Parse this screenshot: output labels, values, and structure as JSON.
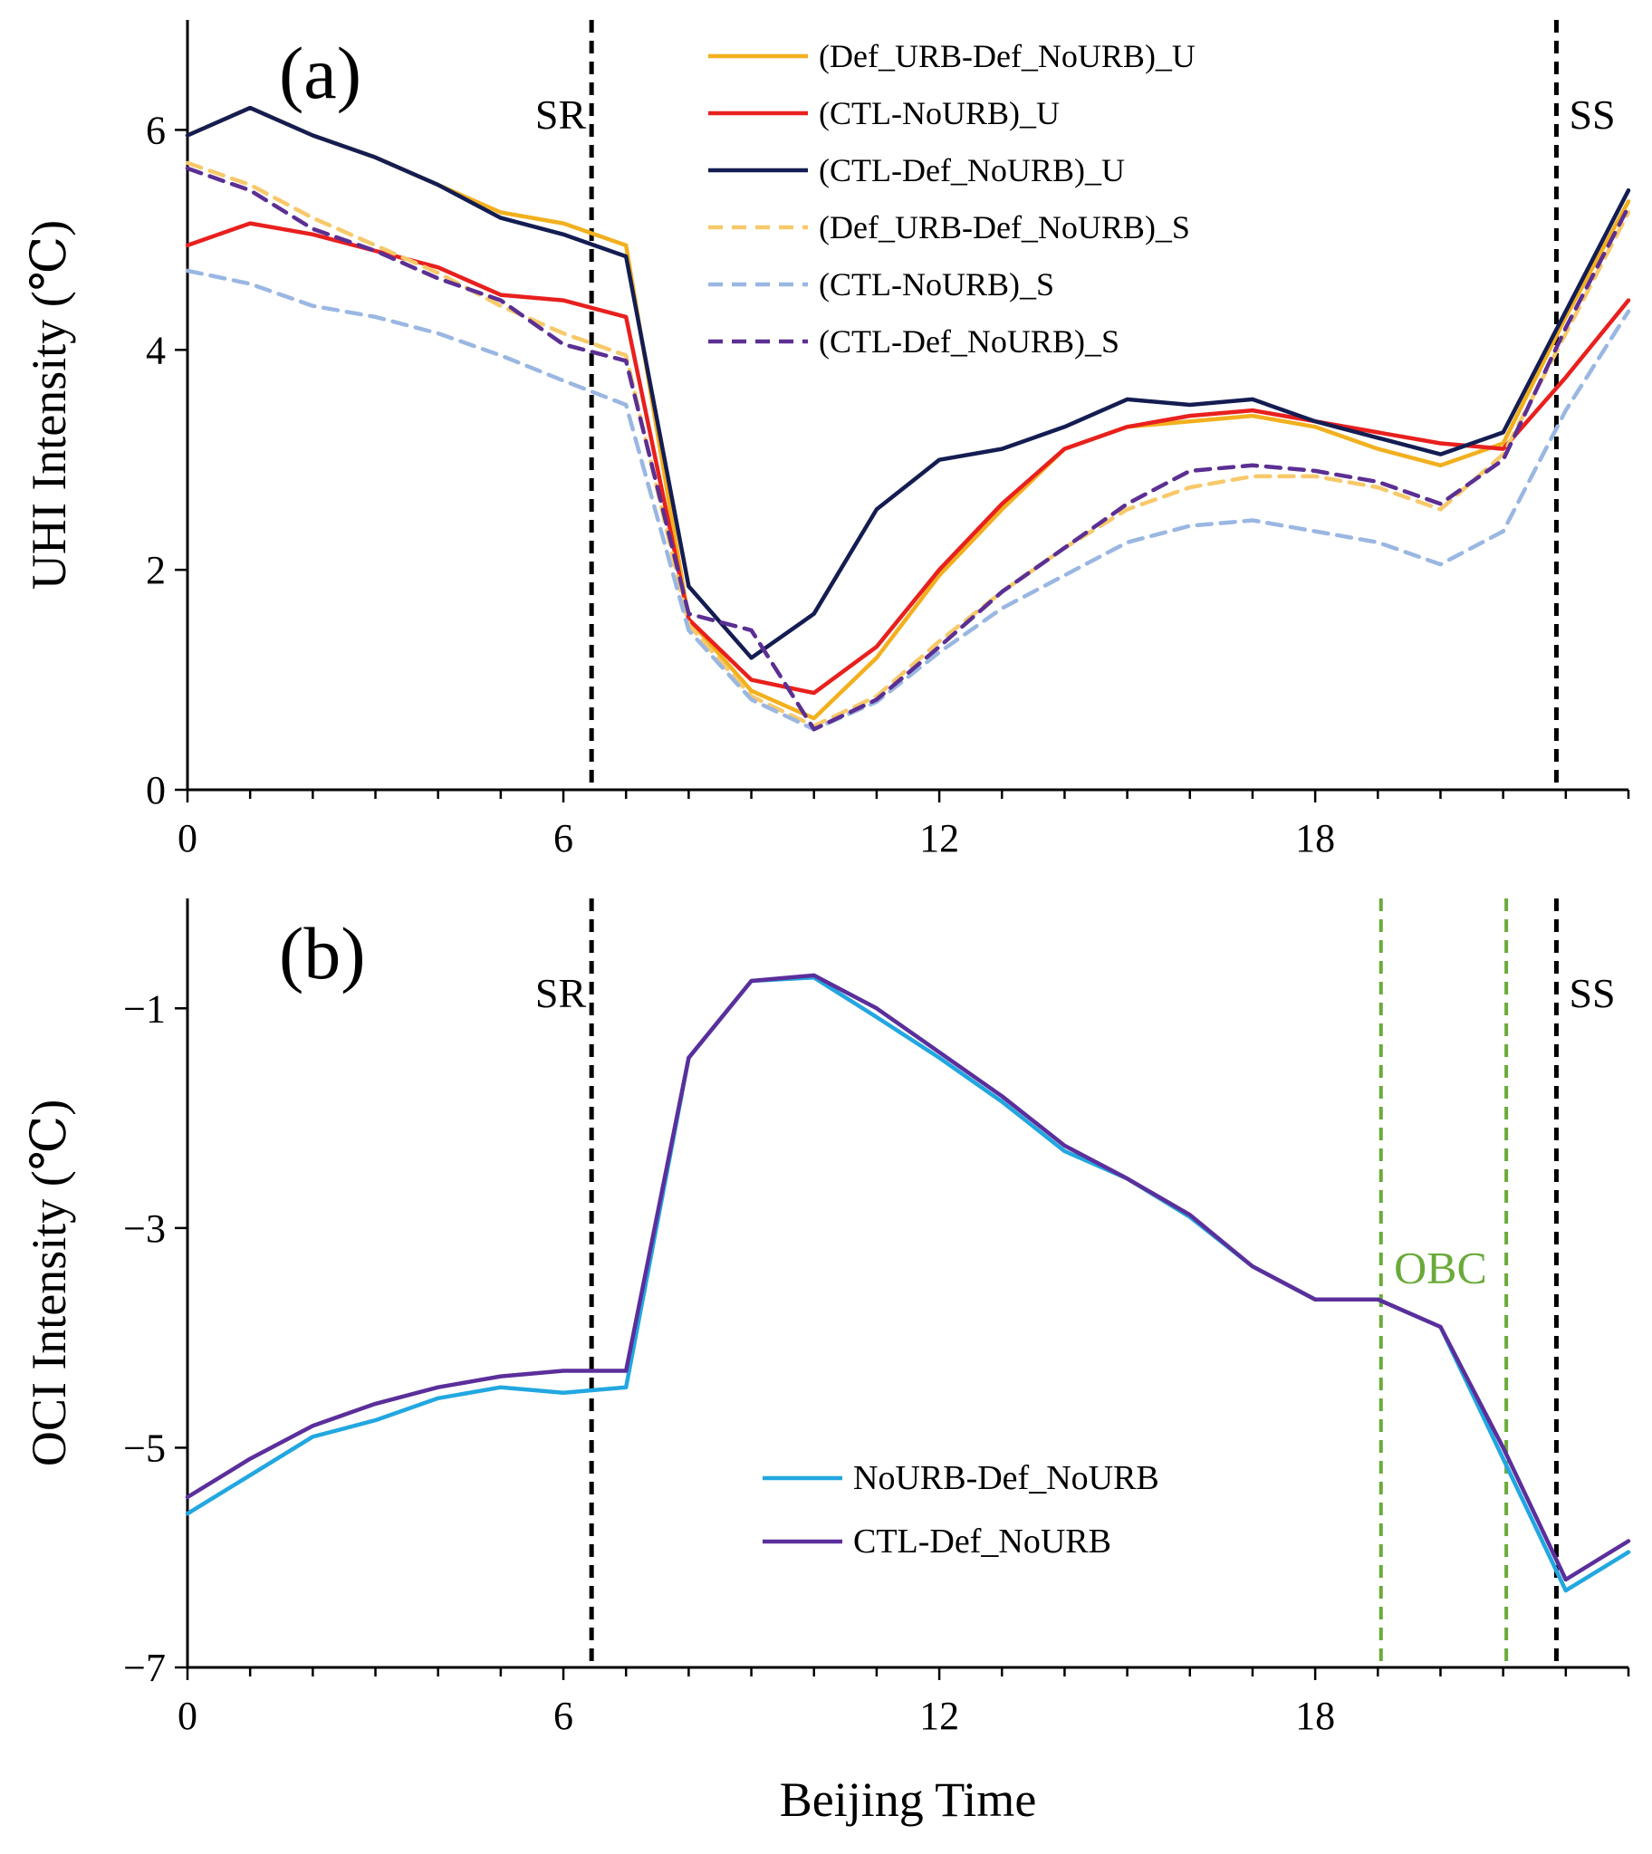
{
  "chart_data": [
    {
      "panel": "(a)",
      "type": "line",
      "ylabel": "UHI Intensity (℃)",
      "xlabel": "",
      "xlim": [
        0,
        23
      ],
      "ylim": [
        0,
        7
      ],
      "xticks": [
        0,
        6,
        12,
        18
      ],
      "yticks": [
        0,
        2,
        4,
        6
      ],
      "grid": false,
      "legend_position": "top-center",
      "markers": [
        {
          "label": "SR",
          "x": 6.45,
          "color": "#000000",
          "style": "dashed"
        },
        {
          "label": "SS",
          "x": 21.85,
          "color": "#000000",
          "style": "dashed"
        }
      ],
      "x": [
        0,
        1,
        2,
        3,
        4,
        5,
        6,
        7,
        8,
        9,
        10,
        11,
        12,
        13,
        14,
        15,
        16,
        17,
        18,
        19,
        20,
        21,
        22,
        23
      ],
      "series": [
        {
          "name": "(Def_URB-Def_NoURB)_U",
          "color": "#f2b01e",
          "dash": "solid",
          "values": [
            5.95,
            6.2,
            5.95,
            5.75,
            5.5,
            5.25,
            5.15,
            4.95,
            1.55,
            0.9,
            0.65,
            1.2,
            1.95,
            2.55,
            3.1,
            3.3,
            3.35,
            3.4,
            3.3,
            3.1,
            2.95,
            3.15,
            4.3,
            5.35
          ]
        },
        {
          "name": "(CTL-NoURB)_U",
          "color": "#e8201e",
          "dash": "solid",
          "values": [
            4.95,
            5.15,
            5.05,
            4.9,
            4.75,
            4.5,
            4.45,
            4.3,
            1.55,
            1.0,
            0.88,
            1.3,
            2.0,
            2.6,
            3.1,
            3.3,
            3.4,
            3.45,
            3.35,
            3.25,
            3.15,
            3.1,
            3.75,
            4.45
          ]
        },
        {
          "name": "(CTL-Def_NoURB)_U",
          "color": "#141d52",
          "dash": "solid",
          "values": [
            5.95,
            6.2,
            5.95,
            5.75,
            5.5,
            5.2,
            5.05,
            4.85,
            1.85,
            1.2,
            1.6,
            2.55,
            3.0,
            3.1,
            3.3,
            3.55,
            3.5,
            3.55,
            3.35,
            3.2,
            3.05,
            3.25,
            4.35,
            5.45
          ]
        },
        {
          "name": "(Def_URB-Def_NoURB)_S",
          "color": "#f7c96a",
          "dash": "dashed",
          "values": [
            5.7,
            5.5,
            5.2,
            4.95,
            4.7,
            4.4,
            4.15,
            3.95,
            1.5,
            0.85,
            0.58,
            0.85,
            1.35,
            1.8,
            2.2,
            2.55,
            2.75,
            2.85,
            2.85,
            2.75,
            2.55,
            3.05,
            4.15,
            5.25
          ]
        },
        {
          "name": "(CTL-NoURB)_S",
          "color": "#9ab7e2",
          "dash": "dashed",
          "values": [
            4.72,
            4.6,
            4.4,
            4.3,
            4.15,
            3.95,
            3.72,
            3.5,
            1.45,
            0.82,
            0.55,
            0.8,
            1.25,
            1.65,
            1.95,
            2.25,
            2.4,
            2.45,
            2.35,
            2.25,
            2.05,
            2.35,
            3.45,
            4.35
          ]
        },
        {
          "name": "(CTL-Def_NoURB)_S",
          "color": "#5b2f93",
          "dash": "dashed",
          "values": [
            5.65,
            5.45,
            5.1,
            4.9,
            4.65,
            4.45,
            4.05,
            3.9,
            1.6,
            1.45,
            0.55,
            0.82,
            1.3,
            1.8,
            2.2,
            2.6,
            2.9,
            2.95,
            2.9,
            2.8,
            2.6,
            3.0,
            4.2,
            5.3
          ]
        }
      ]
    },
    {
      "panel": "(b)",
      "type": "line",
      "ylabel": "OCI Intensity (℃)",
      "xlabel": "Beijing Time",
      "xlim": [
        0,
        23
      ],
      "ylim": [
        -7,
        0
      ],
      "xticks": [
        0,
        6,
        12,
        18
      ],
      "yticks": [
        -1,
        -3,
        -5,
        -7
      ],
      "grid": false,
      "legend_position": "bottom-left",
      "markers": [
        {
          "label": "SR",
          "x": 6.45,
          "color": "#000000",
          "style": "dashed"
        },
        {
          "label": "SS",
          "x": 21.85,
          "color": "#000000",
          "style": "dashed"
        },
        {
          "label": "",
          "x": 19.05,
          "color": "#6aaa3a",
          "style": "dashed"
        },
        {
          "label": "",
          "x": 21.05,
          "color": "#6aaa3a",
          "style": "dashed"
        }
      ],
      "annotations": [
        {
          "text": "OBC",
          "x": 20.0,
          "y": -3.35,
          "color": "#6aaa3a"
        }
      ],
      "x": [
        0,
        1,
        2,
        3,
        4,
        5,
        6,
        7,
        8,
        9,
        10,
        11,
        12,
        13,
        14,
        15,
        16,
        17,
        18,
        19,
        20,
        21,
        22,
        23
      ],
      "series": [
        {
          "name": "NoURB-Def_NoURB",
          "color": "#22a7e0",
          "dash": "solid",
          "values": [
            -5.6,
            -5.25,
            -4.9,
            -4.75,
            -4.55,
            -4.45,
            -4.5,
            -4.45,
            -1.45,
            -0.75,
            -0.72,
            -1.08,
            -1.45,
            -1.85,
            -2.3,
            -2.55,
            -2.9,
            -3.35,
            -3.65,
            -3.65,
            -3.9,
            -5.1,
            -6.3,
            -5.95
          ]
        },
        {
          "name": "CTL-Def_NoURB",
          "color": "#5b2f9b",
          "dash": "solid",
          "values": [
            -5.45,
            -5.1,
            -4.8,
            -4.6,
            -4.45,
            -4.35,
            -4.3,
            -4.3,
            -1.45,
            -0.75,
            -0.7,
            -1.0,
            -1.4,
            -1.8,
            -2.25,
            -2.55,
            -2.88,
            -3.35,
            -3.65,
            -3.65,
            -3.9,
            -5.0,
            -6.2,
            -5.85
          ]
        }
      ]
    }
  ]
}
